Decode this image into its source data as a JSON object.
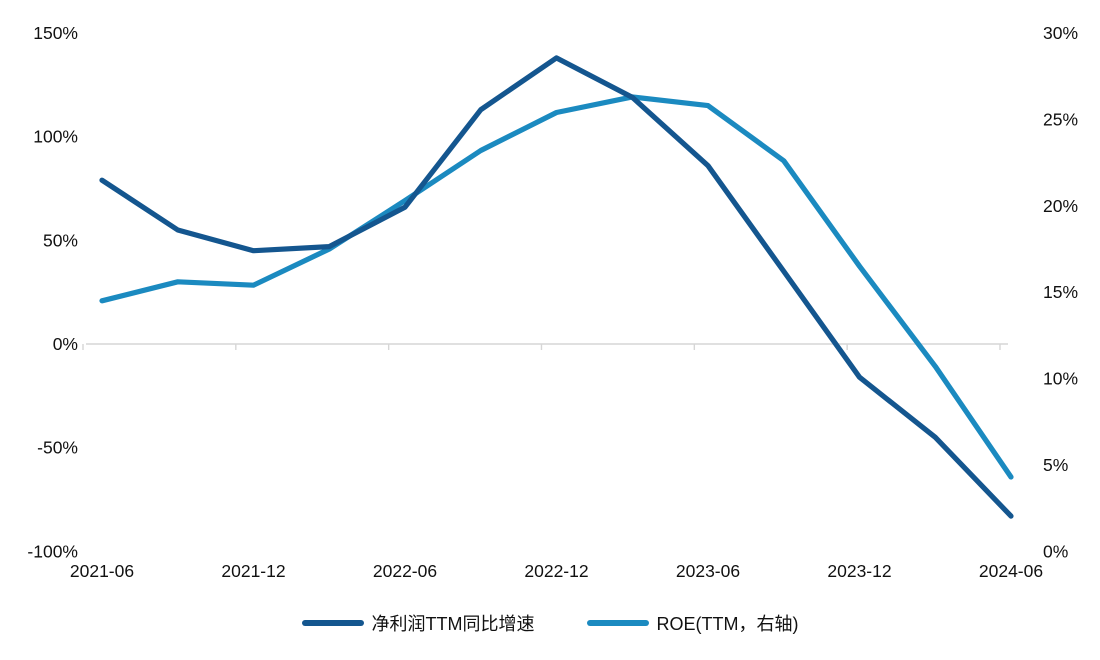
{
  "page": {
    "background": "#ffffff"
  },
  "legend": {
    "items": [
      {
        "label": "净利润TTM同比增速",
        "color": "#14568f"
      },
      {
        "label": "ROE(TTM，右轴)",
        "color": "#1b8ac0"
      }
    ]
  },
  "chart_data": {
    "type": "line",
    "title": "",
    "categories": [
      "2021-06",
      "2021-09",
      "2021-12",
      "2022-03",
      "2022-06",
      "2022-09",
      "2022-12",
      "2023-03",
      "2023-06",
      "2023-09",
      "2023-12",
      "2024-03",
      "2024-06"
    ],
    "series": [
      {
        "name": "净利润TTM同比增速",
        "axis": "left",
        "color": "#14568f",
        "values": [
          79,
          55,
          45,
          47,
          66,
          113,
          138,
          119,
          86,
          35,
          -16,
          -45,
          -83
        ]
      },
      {
        "name": "ROE(TTM，右轴)",
        "axis": "right",
        "color": "#1b8ac0",
        "values": [
          14.5,
          15.6,
          15.4,
          17.5,
          20.3,
          23.2,
          25.4,
          26.3,
          25.8,
          22.6,
          16.5,
          10.7,
          4.3
        ]
      }
    ],
    "left_axis": {
      "unit": "%",
      "tick_labels": [
        "150%",
        "100%",
        "50%",
        "0%",
        "-50%",
        "-100%"
      ],
      "tick_values": [
        150,
        100,
        50,
        0,
        -50,
        -100
      ],
      "range": [
        -100,
        150
      ]
    },
    "right_axis": {
      "unit": "%",
      "tick_labels": [
        "30%",
        "25%",
        "20%",
        "15%",
        "10%",
        "5%",
        "0%"
      ],
      "tick_values": [
        30,
        25,
        20,
        15,
        10,
        5,
        0
      ],
      "range": [
        0,
        30
      ]
    },
    "x_axis": {
      "visible_labels": [
        "2021-06",
        "2021-12",
        "2022-06",
        "2022-12",
        "2023-06",
        "2023-12",
        "2024-06"
      ],
      "label_indices": [
        0,
        2,
        4,
        6,
        8,
        10,
        12
      ]
    },
    "gridline": {
      "axis": "left",
      "value": 0,
      "color": "#d6d6d6"
    },
    "grid": "single-zero-line",
    "legend_position": "bottom",
    "text_color": "#111111"
  }
}
